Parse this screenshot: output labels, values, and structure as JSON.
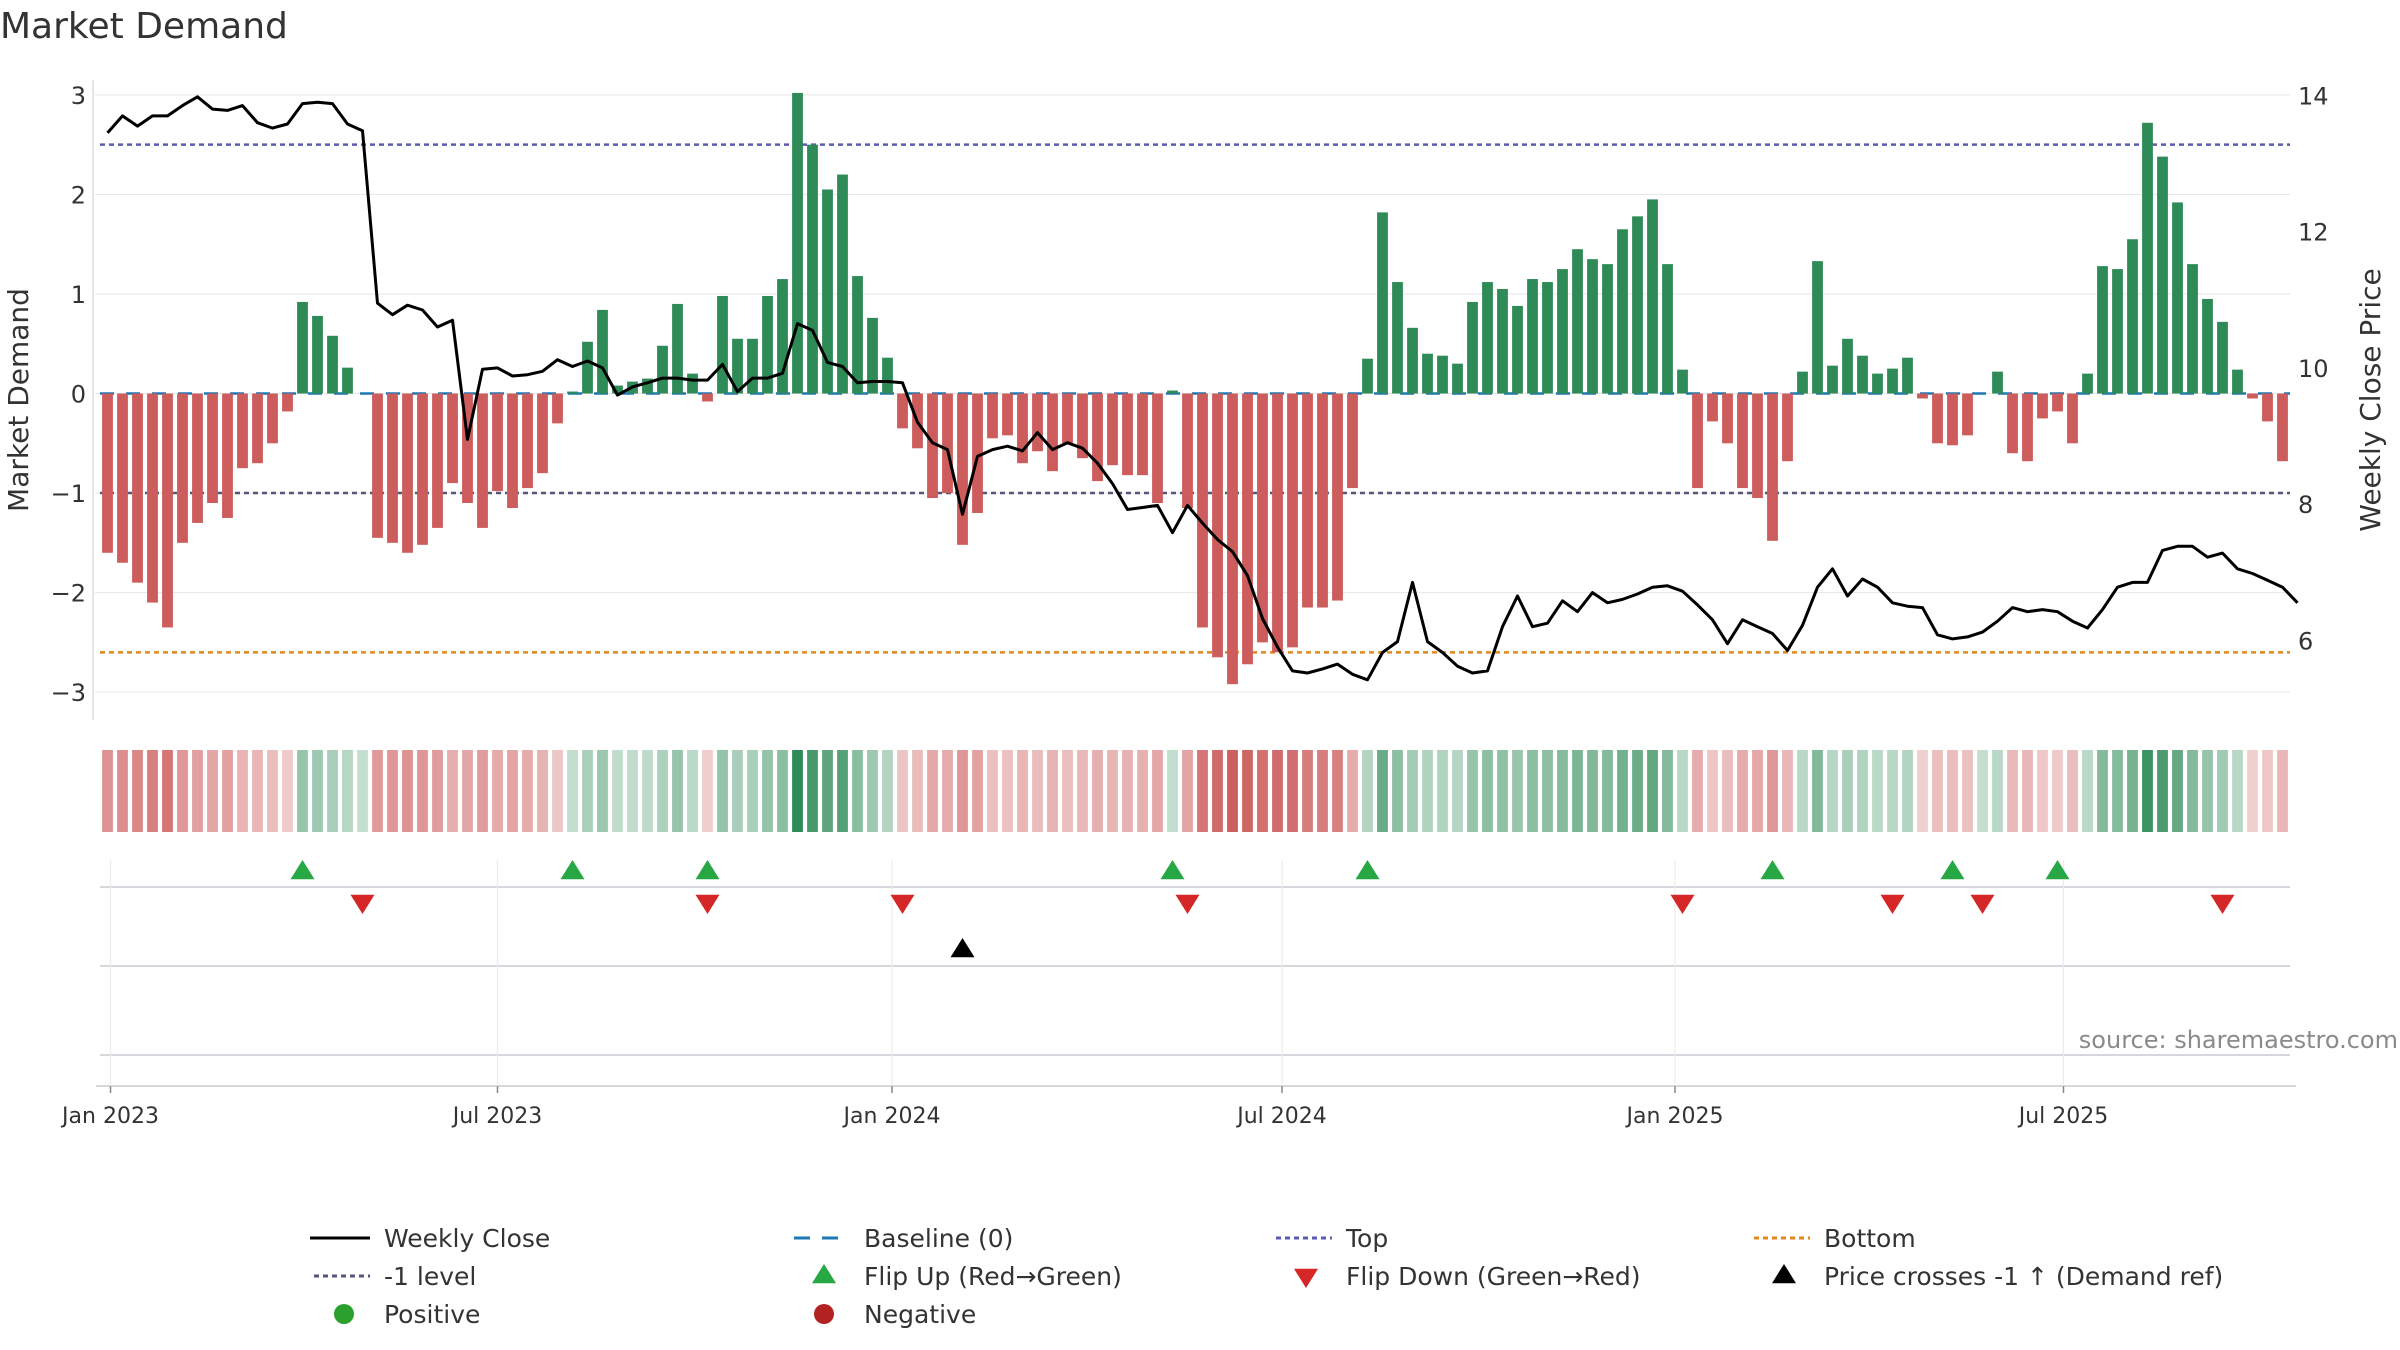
{
  "title": "Market Demand",
  "source": "source: sharemaestro.com",
  "chart_data": {
    "type": "bar",
    "title": "Market Demand",
    "ylabel": "Market Demand",
    "y2label": "Weekly Close Price",
    "ylim": [
      -3.3,
      3.2
    ],
    "y2lim": [
      4.8,
      14.3
    ],
    "yticks": [
      {
        "v": 3,
        "l": "3"
      },
      {
        "v": 2,
        "l": "2"
      },
      {
        "v": 1,
        "l": "1"
      },
      {
        "v": 0,
        "l": "0"
      },
      {
        "v": -1,
        "l": "−1"
      },
      {
        "v": -2,
        "l": "−2"
      },
      {
        "v": -3,
        "l": "−3"
      }
    ],
    "y2ticks": [
      6,
      8,
      10,
      12,
      14
    ],
    "xticks": [
      "Jan 2023",
      "Jul 2023",
      "Jan 2024",
      "Jul 2024",
      "Jan 2025",
      "Jul 2025"
    ],
    "reference_lines": {
      "top": 2.5,
      "bottom": -2.6,
      "minus_one": -1,
      "baseline": 0
    },
    "demand": [
      -1.6,
      -1.7,
      -1.9,
      -2.1,
      -2.35,
      -1.5,
      -1.3,
      -1.1,
      -1.25,
      -0.75,
      -0.7,
      -0.5,
      -0.18,
      0.92,
      0.78,
      0.58,
      0.26,
      0,
      -1.45,
      -1.5,
      -1.6,
      -1.52,
      -1.35,
      -0.9,
      -1.1,
      -1.35,
      -0.98,
      -1.15,
      -0.95,
      -0.8,
      -0.3,
      0.02,
      0.52,
      0.84,
      0.08,
      0.12,
      0.15,
      0.48,
      0.9,
      0.2,
      -0.08,
      0.98,
      0.55,
      0.55,
      0.98,
      1.15,
      3.02,
      2.5,
      2.05,
      2.2,
      1.18,
      0.76,
      0.36,
      -0.35,
      -0.55,
      -1.05,
      -1.0,
      -1.52,
      -1.2,
      -0.45,
      -0.42,
      -0.7,
      -0.58,
      -0.78,
      -0.5,
      -0.65,
      -0.88,
      -0.72,
      -0.82,
      -0.82,
      -1.1,
      0.03,
      -1.15,
      -2.35,
      -2.65,
      -2.92,
      -2.72,
      -2.5,
      -2.6,
      -2.55,
      -2.15,
      -2.15,
      -2.08,
      -0.95,
      0.35,
      1.82,
      1.12,
      0.66,
      0.4,
      0.38,
      0.3,
      0.92,
      1.12,
      1.05,
      0.88,
      1.15,
      1.12,
      1.25,
      1.45,
      1.35,
      1.3,
      1.65,
      1.78,
      1.95,
      1.3,
      0.24,
      -0.95,
      -0.28,
      -0.5,
      -0.95,
      -1.05,
      -1.48,
      -0.68,
      0.22,
      1.33,
      0.28,
      0.55,
      0.38,
      0.2,
      0.25,
      0.36,
      -0.05,
      -0.5,
      -0.52,
      -0.42,
      0,
      0.22,
      -0.6,
      -0.68,
      -0.25,
      -0.18,
      -0.5,
      0.2,
      1.28,
      1.25,
      1.55,
      2.72,
      2.38,
      1.92,
      1.3,
      0.95,
      0.72,
      0.24,
      -0.05,
      -0.28,
      -0.68
    ],
    "close": [
      13.45,
      13.7,
      13.55,
      13.7,
      13.7,
      13.85,
      13.98,
      13.8,
      13.78,
      13.85,
      13.6,
      13.52,
      13.58,
      13.88,
      13.9,
      13.88,
      13.58,
      13.48,
      10.95,
      10.78,
      10.92,
      10.85,
      10.6,
      10.7,
      8.95,
      9.98,
      10.0,
      9.88,
      9.9,
      9.95,
      10.12,
      10.02,
      10.1,
      10.0,
      9.6,
      9.72,
      9.78,
      9.85,
      9.85,
      9.82,
      9.82,
      10.05,
      9.65,
      9.85,
      9.85,
      9.92,
      10.65,
      10.55,
      10.08,
      10.02,
      9.78,
      9.8,
      9.8,
      9.78,
      9.2,
      8.9,
      8.8,
      7.85,
      8.7,
      8.8,
      8.85,
      8.78,
      9.05,
      8.8,
      8.9,
      8.82,
      8.6,
      8.3,
      7.92,
      7.95,
      7.98,
      7.58,
      7.98,
      7.72,
      7.48,
      7.3,
      6.95,
      6.32,
      5.9,
      5.55,
      5.52,
      5.58,
      5.65,
      5.5,
      5.42,
      5.82,
      5.98,
      6.85,
      5.98,
      5.82,
      5.62,
      5.52,
      5.55,
      6.2,
      6.65,
      6.2,
      6.25,
      6.58,
      6.42,
      6.7,
      6.55,
      6.6,
      6.68,
      6.78,
      6.8,
      6.72,
      6.52,
      6.3,
      5.95,
      6.3,
      6.2,
      6.1,
      5.85,
      6.22,
      6.78,
      7.05,
      6.65,
      6.9,
      6.78,
      6.55,
      6.5,
      6.48,
      6.08,
      6.02,
      6.05,
      6.12,
      6.28,
      6.48,
      6.42,
      6.45,
      6.42,
      6.28,
      6.18,
      6.45,
      6.78,
      6.85,
      6.85,
      7.32,
      7.38,
      7.38,
      7.22,
      7.28,
      7.05,
      6.98,
      6.88,
      6.78,
      6.55
    ],
    "flip_up": [
      13,
      31,
      40,
      71,
      84,
      111,
      123,
      130
    ],
    "flip_down": [
      17,
      40,
      53,
      72,
      105,
      119,
      125,
      141
    ],
    "price_cross": [
      57
    ],
    "colors": {
      "positive_bar": "#2e8b57",
      "negative_bar": "#cd5c5c",
      "close_line": "#000000",
      "top_line": "#5b5bb0",
      "bottom_line": "#e08a1e",
      "minus_one_line": "#555577",
      "baseline": "#1f77b4",
      "flip_up": "#28a745",
      "flip_down": "#d62728",
      "price_cross": "#000000",
      "positive_dot": "#2ca02c",
      "negative_dot": "#b22222"
    },
    "legend": [
      {
        "label": "Weekly Close",
        "marker": "line",
        "color": "#000000"
      },
      {
        "label": "Baseline (0)",
        "marker": "dash",
        "color": "#1f77b4"
      },
      {
        "label": "Top",
        "marker": "dot",
        "color": "#5b5bb0"
      },
      {
        "label": "Bottom",
        "marker": "dot",
        "color": "#e08a1e"
      },
      {
        "label": "-1 level",
        "marker": "dot",
        "color": "#555577"
      },
      {
        "label": "Flip Up (Red→Green)",
        "marker": "tri-up",
        "color": "#28a745"
      },
      {
        "label": "Flip Down (Green→Red)",
        "marker": "tri-down",
        "color": "#d62728"
      },
      {
        "label": "Price crosses -1 ↑ (Demand ref)",
        "marker": "tri-up",
        "color": "#000000"
      },
      {
        "label": "Positive",
        "marker": "circle",
        "color": "#2ca02c"
      },
      {
        "label": "Negative",
        "marker": "circle",
        "color": "#b22222"
      }
    ]
  }
}
